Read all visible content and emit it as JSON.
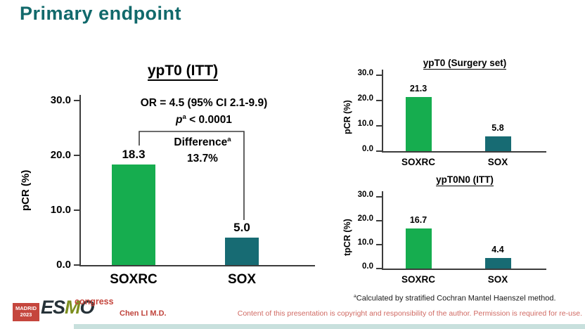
{
  "slide": {
    "title": "Primary endpoint",
    "author": "Chen LI M.D.",
    "footnote_sup": "a",
    "footnote_text": "Calculated by stratified Cochran Mantel Haenszel method.",
    "copyright": "Content of this presentation is copyright and responsibility of the author. Permission is required for re-use."
  },
  "logo": {
    "location": "MADRID",
    "year": "2023",
    "name_parts": [
      "ES",
      "M",
      "O"
    ],
    "suffix": "congress"
  },
  "colors": {
    "title_teal": "#11696b",
    "soxrc_green": "#16ad4f",
    "sox_teal": "#176b73",
    "red_text": "#c0443c",
    "light_red_text": "#d06a63",
    "bottom_strip": "#c8e0dd"
  },
  "chart_data": [
    {
      "type": "bar",
      "title": "ypT0 (ITT)",
      "ylabel": "pCR (%)",
      "categories": [
        "SOXRC",
        "SOX"
      ],
      "values": [
        18.3,
        5.0
      ],
      "value_labels": [
        "18.3",
        "5.0"
      ],
      "ylim": [
        0,
        30
      ],
      "yticks": [
        "30.0",
        "20.0",
        "10.0",
        "0.0"
      ],
      "grid": "off",
      "legend": "none",
      "annotations": {
        "or_text": "OR = 4.5 (95% CI 2.1-9.9)",
        "p_italic": "p",
        "p_sup": "a",
        "p_rest": " < 0.0001",
        "diff_label": "Difference",
        "diff_sup": "a",
        "diff_value": "13.7%"
      }
    },
    {
      "type": "bar",
      "title": "ypT0 (Surgery set)",
      "ylabel": "pCR (%)",
      "categories": [
        "SOXRC",
        "SOX"
      ],
      "values": [
        21.3,
        5.8
      ],
      "value_labels": [
        "21.3",
        "5.8"
      ],
      "ylim": [
        0,
        30
      ],
      "yticks": [
        "30.0",
        "20.0",
        "10.0",
        "0.0"
      ],
      "grid": "off",
      "legend": "none"
    },
    {
      "type": "bar",
      "title": "ypT0N0 (ITT)",
      "ylabel": "tpCR (%)",
      "categories": [
        "SOXRC",
        "SOX"
      ],
      "values": [
        16.7,
        4.4
      ],
      "value_labels": [
        "16.7",
        "4.4"
      ],
      "ylim": [
        0,
        30
      ],
      "yticks": [
        "30.0",
        "20.0",
        "10.0",
        "0.0"
      ],
      "grid": "off",
      "legend": "none"
    }
  ]
}
